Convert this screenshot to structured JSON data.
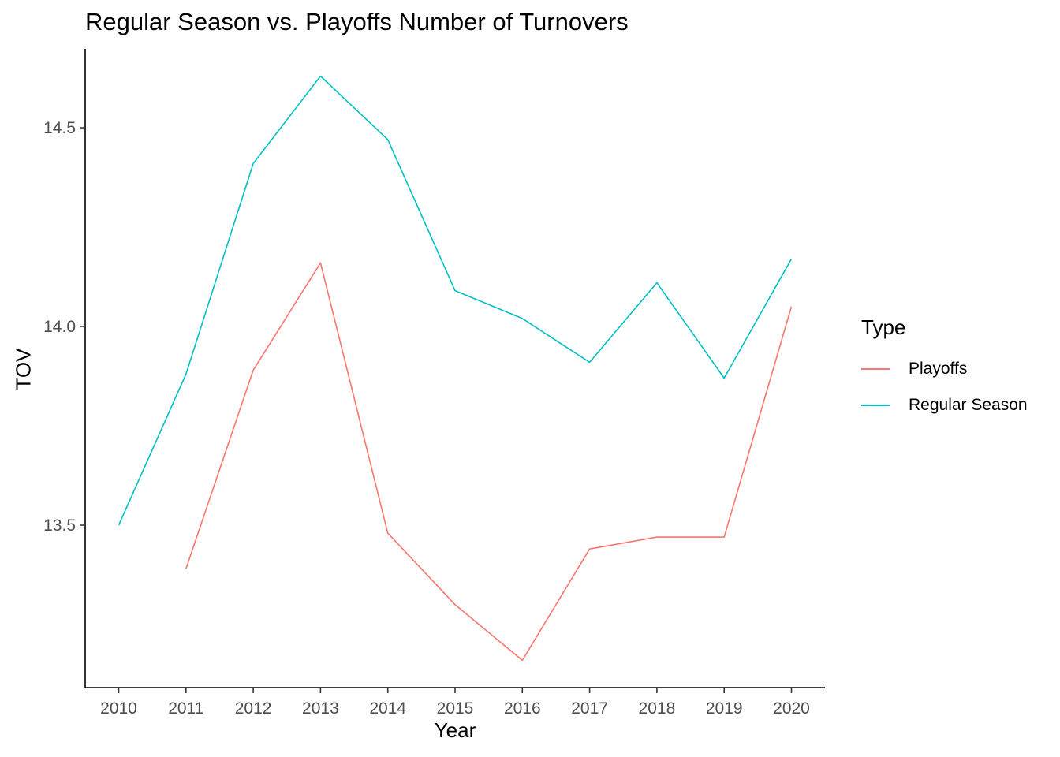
{
  "chart_data": {
    "type": "line",
    "title": "Regular Season vs. Playoffs Number of Turnovers",
    "xlabel": "Year",
    "ylabel": "TOV",
    "x": [
      2010,
      2011,
      2012,
      2013,
      2014,
      2015,
      2016,
      2017,
      2018,
      2019,
      2020
    ],
    "x_ticks": [
      "2010",
      "2011",
      "2012",
      "2013",
      "2014",
      "2015",
      "2016",
      "2017",
      "2018",
      "2019",
      "2020"
    ],
    "y_ticks": [
      "13.5",
      "14.0",
      "14.5"
    ],
    "y_tick_values": [
      13.5,
      14.0,
      14.5
    ],
    "ylim": [
      13.14,
      14.63
    ],
    "xlim": [
      2009.5,
      2020.5
    ],
    "grid": false,
    "legend_title": "Type",
    "legend_position": "right",
    "series": [
      {
        "name": "Playoffs",
        "color": "#F8766D",
        "values": [
          null,
          13.39,
          13.89,
          14.16,
          13.48,
          13.3,
          13.16,
          13.44,
          13.47,
          13.47,
          14.05
        ]
      },
      {
        "name": "Regular Season",
        "color": "#00BFC4",
        "values": [
          13.5,
          13.88,
          14.41,
          14.63,
          14.47,
          14.09,
          14.02,
          13.91,
          14.11,
          13.87,
          14.17
        ]
      }
    ]
  }
}
